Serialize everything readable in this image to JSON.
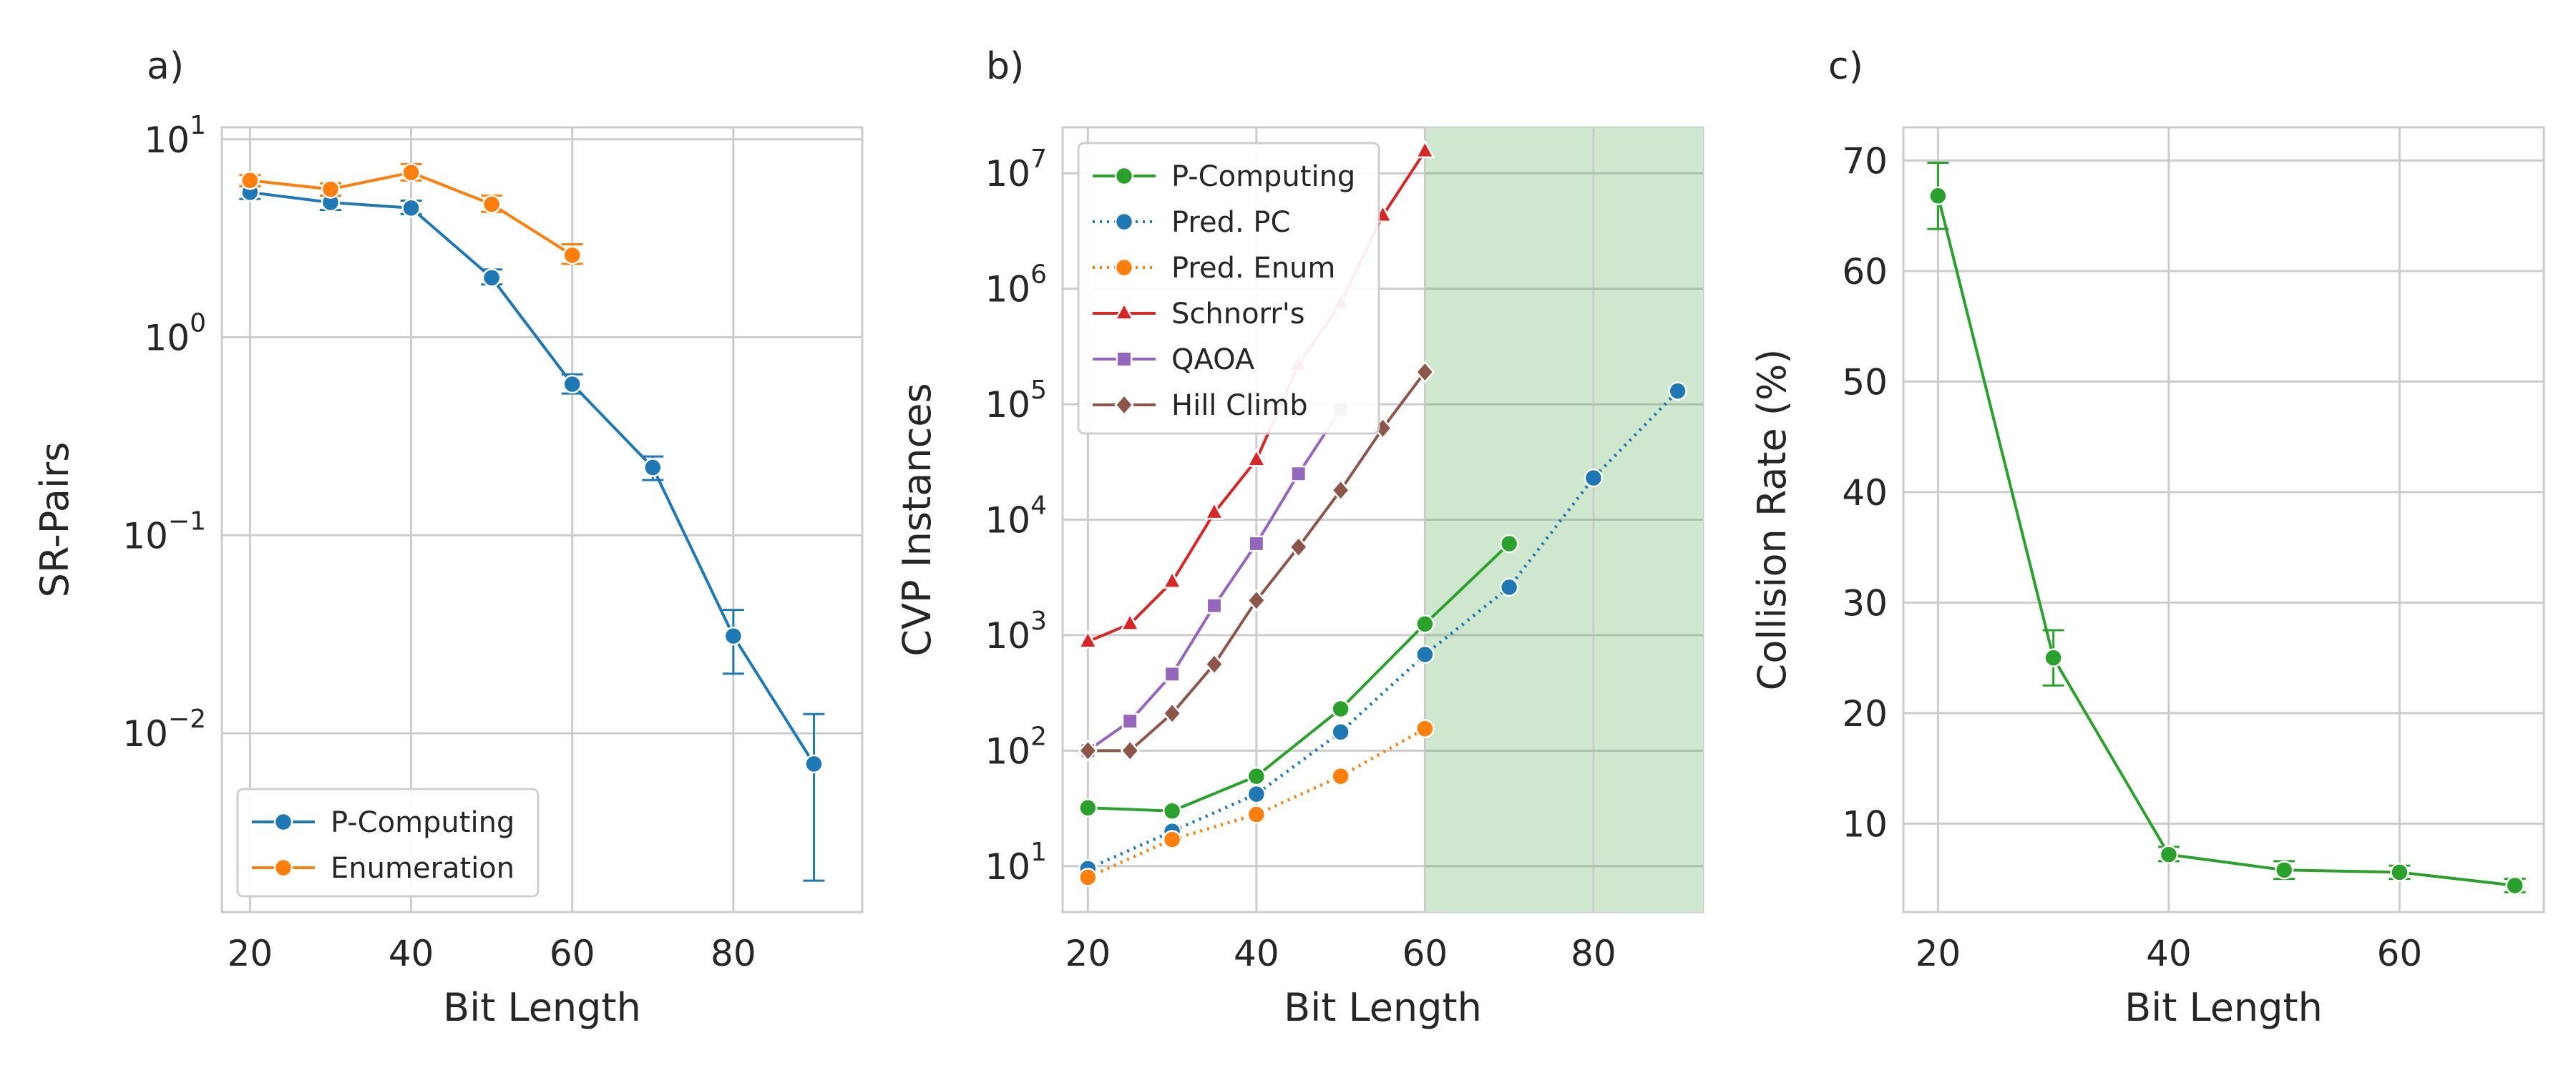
{
  "chart_data": [
    {
      "panel_label": "a)",
      "type": "line",
      "xlabel": "Bit Length",
      "ylabel": "SR-Pairs",
      "yscale": "log",
      "xlim": [
        16.5,
        96
      ],
      "ylim": [
        0.00125,
        11.5
      ],
      "xticks": [
        20,
        40,
        60,
        80
      ],
      "yticks": [
        {
          "base": "10",
          "exp": "1",
          "value": 10
        },
        {
          "base": "10",
          "exp": "0",
          "value": 1
        },
        {
          "base": "10",
          "exp": "−1",
          "value": 0.1
        },
        {
          "base": "10",
          "exp": "−2",
          "value": 0.01
        }
      ],
      "grid": true,
      "legend_position": "lower-left",
      "series": [
        {
          "name": "P-Computing",
          "color": "#1f77b4",
          "marker": "circle",
          "linestyle": "solid",
          "x": [
            20,
            30,
            40,
            50,
            60,
            70,
            80,
            90
          ],
          "y": [
            5.4,
            4.8,
            4.5,
            2.0,
            0.58,
            0.22,
            0.031,
            0.007
          ],
          "err_low": [
            5.0,
            4.4,
            4.2,
            1.85,
            0.52,
            0.19,
            0.02,
            0.0018
          ],
          "err_high": [
            5.8,
            5.2,
            4.9,
            2.2,
            0.65,
            0.25,
            0.042,
            0.0125
          ]
        },
        {
          "name": "Enumeration",
          "color": "#ff7f0e",
          "marker": "circle",
          "linestyle": "solid",
          "x": [
            20,
            30,
            40,
            50,
            60
          ],
          "y": [
            6.2,
            5.6,
            6.8,
            4.7,
            2.6
          ],
          "err_low": [
            5.8,
            5.2,
            6.2,
            4.3,
            2.35
          ],
          "err_high": [
            6.6,
            6.0,
            7.5,
            5.2,
            2.95
          ]
        }
      ]
    },
    {
      "panel_label": "b)",
      "type": "line",
      "xlabel": "Bit Length",
      "ylabel": "CVP Instances",
      "yscale": "log",
      "xlim": [
        17,
        93
      ],
      "ylim": [
        4.0,
        25000000
      ],
      "xticks": [
        20,
        40,
        60,
        80
      ],
      "yticks": [
        {
          "base": "10",
          "exp": "1",
          "value": 10
        },
        {
          "base": "10",
          "exp": "2",
          "value": 100
        },
        {
          "base": "10",
          "exp": "3",
          "value": 1000
        },
        {
          "base": "10",
          "exp": "4",
          "value": 10000
        },
        {
          "base": "10",
          "exp": "5",
          "value": 100000
        },
        {
          "base": "10",
          "exp": "6",
          "value": 1000000
        },
        {
          "base": "10",
          "exp": "7",
          "value": 10000000
        }
      ],
      "grid": true,
      "shaded_region": {
        "x_from": 60,
        "x_to": 93,
        "color": "#cfe7cf"
      },
      "legend_position": "upper-left",
      "series": [
        {
          "name": "P-Computing",
          "color": "#2ca02c",
          "marker": "circle",
          "linestyle": "solid",
          "x": [
            20,
            30,
            40,
            50,
            60,
            70
          ],
          "y": [
            32,
            30,
            60,
            230,
            1250,
            6200
          ]
        },
        {
          "name": "Pred. PC",
          "color": "#1f77b4",
          "marker": "circle",
          "linestyle": "dotted",
          "x": [
            20,
            30,
            40,
            50,
            60,
            70,
            80,
            90
          ],
          "y": [
            9.5,
            20,
            42,
            145,
            680,
            2600,
            23000,
            130000
          ]
        },
        {
          "name": "Pred. Enum",
          "color": "#ff7f0e",
          "marker": "circle",
          "linestyle": "dotted",
          "x": [
            20,
            30,
            40,
            50,
            60
          ],
          "y": [
            8,
            17,
            28,
            60,
            155
          ]
        },
        {
          "name": "Schnorr's",
          "color": "#d62728",
          "marker": "triangle",
          "linestyle": "solid",
          "x": [
            20,
            25,
            30,
            35,
            40,
            45,
            50,
            55,
            60
          ],
          "y": [
            880,
            1250,
            2900,
            11500,
            33000,
            220000,
            750000,
            4300000,
            15500000
          ]
        },
        {
          "name": "QAOA",
          "color": "#9467bd",
          "marker": "square",
          "linestyle": "solid",
          "x": [
            20,
            25,
            30,
            35,
            40,
            45,
            50
          ],
          "y": [
            100,
            180,
            460,
            1800,
            6200,
            25000,
            90000
          ]
        },
        {
          "name": "Hill Climb",
          "color": "#8c564b",
          "marker": "diamond",
          "linestyle": "solid",
          "x": [
            20,
            25,
            30,
            35,
            40,
            45,
            50,
            55,
            60
          ],
          "y": [
            100,
            100,
            210,
            560,
            2000,
            5800,
            18000,
            62000,
            190000
          ]
        }
      ]
    },
    {
      "panel_label": "c)",
      "type": "line",
      "xlabel": "Bit Length",
      "ylabel": "Collision Rate (%)",
      "yscale": "linear",
      "xlim": [
        17,
        72.5
      ],
      "ylim": [
        2.0,
        73.0
      ],
      "xticks": [
        20,
        40,
        60
      ],
      "yticks": [
        {
          "base": "10",
          "value": 10
        },
        {
          "base": "20",
          "value": 20
        },
        {
          "base": "30",
          "value": 30
        },
        {
          "base": "40",
          "value": 40
        },
        {
          "base": "50",
          "value": 50
        },
        {
          "base": "60",
          "value": 60
        },
        {
          "base": "70",
          "value": 70
        }
      ],
      "grid": true,
      "series": [
        {
          "color": "#2ca02c",
          "marker": "circle",
          "linestyle": "solid",
          "x": [
            20,
            30,
            40,
            50,
            60,
            70
          ],
          "y": [
            66.8,
            25.0,
            7.2,
            5.8,
            5.6,
            4.4
          ],
          "err_low": [
            63.8,
            22.5,
            6.6,
            5.0,
            5.0,
            3.8
          ],
          "err_high": [
            69.8,
            27.5,
            7.9,
            6.6,
            6.2,
            5.0
          ]
        }
      ]
    }
  ]
}
